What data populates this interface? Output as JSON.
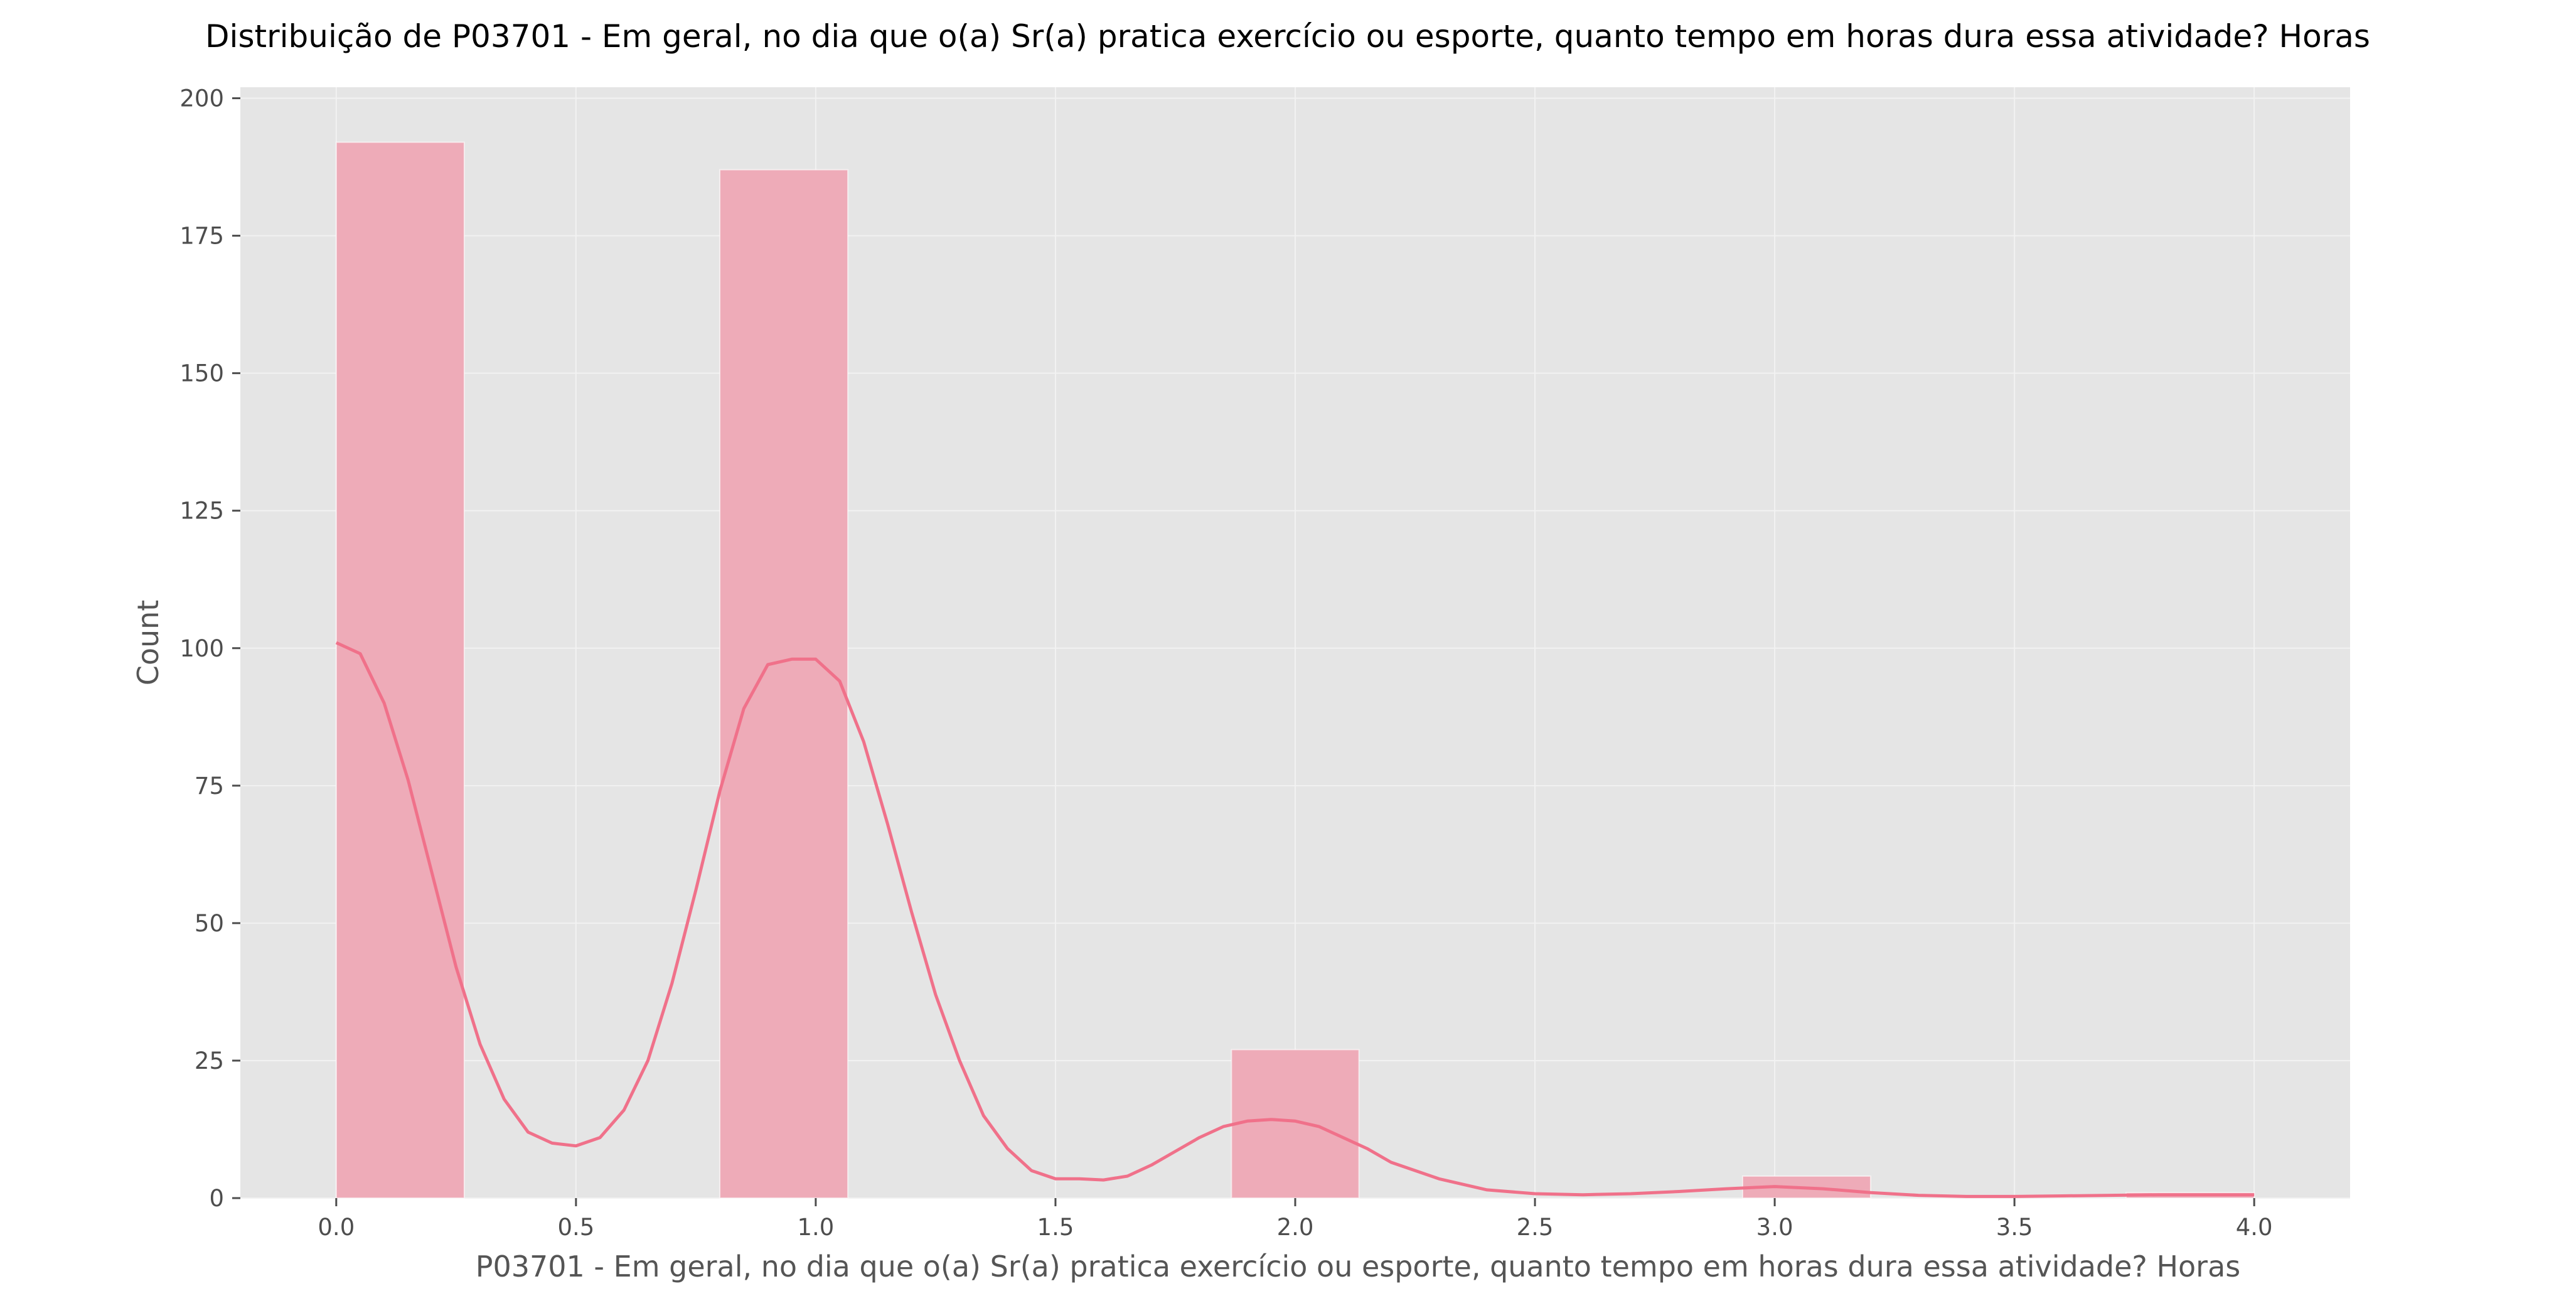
{
  "chart_data": {
    "type": "bar",
    "title": "Distribuição de P03701 - Em geral, no dia que o(a) Sr(a) pratica exercício ou esporte, quanto tempo em horas dura essa atividade? Horas",
    "xlabel": "P03701 - Em geral, no dia que o(a) Sr(a) pratica exercício ou esporte, quanto tempo em horas dura essa atividade? Horas",
    "ylabel": "Count",
    "xlim": [
      -0.2,
      4.2
    ],
    "ylim": [
      0,
      202
    ],
    "xticks": [
      "0.0",
      "0.5",
      "1.0",
      "1.5",
      "2.0",
      "2.5",
      "3.0",
      "3.5",
      "4.0"
    ],
    "xtick_values": [
      0,
      0.5,
      1.0,
      1.5,
      2.0,
      2.5,
      3.0,
      3.5,
      4.0
    ],
    "yticks": [
      "0",
      "25",
      "50",
      "75",
      "100",
      "125",
      "150",
      "175",
      "200"
    ],
    "ytick_values": [
      0,
      25,
      50,
      75,
      100,
      125,
      150,
      175,
      200
    ],
    "grid": true,
    "bins": [
      {
        "x0": 0.0,
        "x1": 0.267,
        "count": 192
      },
      {
        "x0": 0.267,
        "x1": 0.533,
        "count": 0
      },
      {
        "x0": 0.533,
        "x1": 0.8,
        "count": 0
      },
      {
        "x0": 0.8,
        "x1": 1.067,
        "count": 187
      },
      {
        "x0": 1.067,
        "x1": 1.333,
        "count": 0
      },
      {
        "x0": 1.333,
        "x1": 1.6,
        "count": 0
      },
      {
        "x0": 1.6,
        "x1": 1.867,
        "count": 0
      },
      {
        "x0": 1.867,
        "x1": 2.133,
        "count": 27
      },
      {
        "x0": 2.133,
        "x1": 2.4,
        "count": 0
      },
      {
        "x0": 2.4,
        "x1": 2.667,
        "count": 0
      },
      {
        "x0": 2.667,
        "x1": 2.933,
        "count": 0
      },
      {
        "x0": 2.933,
        "x1": 3.2,
        "count": 4
      },
      {
        "x0": 3.2,
        "x1": 3.467,
        "count": 0
      },
      {
        "x0": 3.467,
        "x1": 3.733,
        "count": 0
      },
      {
        "x0": 3.733,
        "x1": 4.0,
        "count": 1
      }
    ],
    "kde": {
      "x": [
        0.0,
        0.05,
        0.1,
        0.15,
        0.2,
        0.25,
        0.3,
        0.35,
        0.4,
        0.45,
        0.5,
        0.55,
        0.6,
        0.65,
        0.7,
        0.75,
        0.8,
        0.85,
        0.9,
        0.95,
        1.0,
        1.05,
        1.1,
        1.15,
        1.2,
        1.25,
        1.3,
        1.35,
        1.4,
        1.45,
        1.5,
        1.55,
        1.6,
        1.65,
        1.7,
        1.75,
        1.8,
        1.85,
        1.9,
        1.95,
        2.0,
        2.05,
        2.1,
        2.15,
        2.2,
        2.3,
        2.4,
        2.5,
        2.6,
        2.7,
        2.8,
        2.9,
        3.0,
        3.1,
        3.2,
        3.3,
        3.4,
        3.5,
        3.6,
        3.7,
        3.8,
        3.9,
        4.0
      ],
      "y": [
        101,
        99,
        90,
        76,
        59,
        42,
        28,
        18,
        12,
        10,
        9.5,
        11,
        16,
        25,
        39,
        56,
        74,
        89,
        97,
        98,
        98,
        94,
        83,
        68,
        52,
        37,
        25,
        15,
        9,
        5,
        3.5,
        3.5,
        3.3,
        4,
        6,
        8.5,
        11,
        13,
        14,
        14.3,
        14,
        13,
        11,
        9,
        6.5,
        3.5,
        1.5,
        0.8,
        0.6,
        0.8,
        1.2,
        1.7,
        2.1,
        1.7,
        1,
        0.5,
        0.3,
        0.3,
        0.4,
        0.5,
        0.6,
        0.6,
        0.6
      ]
    },
    "colors": {
      "bar_fill": "#eeabb8",
      "kde_line": "#f0718a",
      "plot_bg": "#e5e5e5",
      "grid": "#f2f2f2"
    }
  }
}
